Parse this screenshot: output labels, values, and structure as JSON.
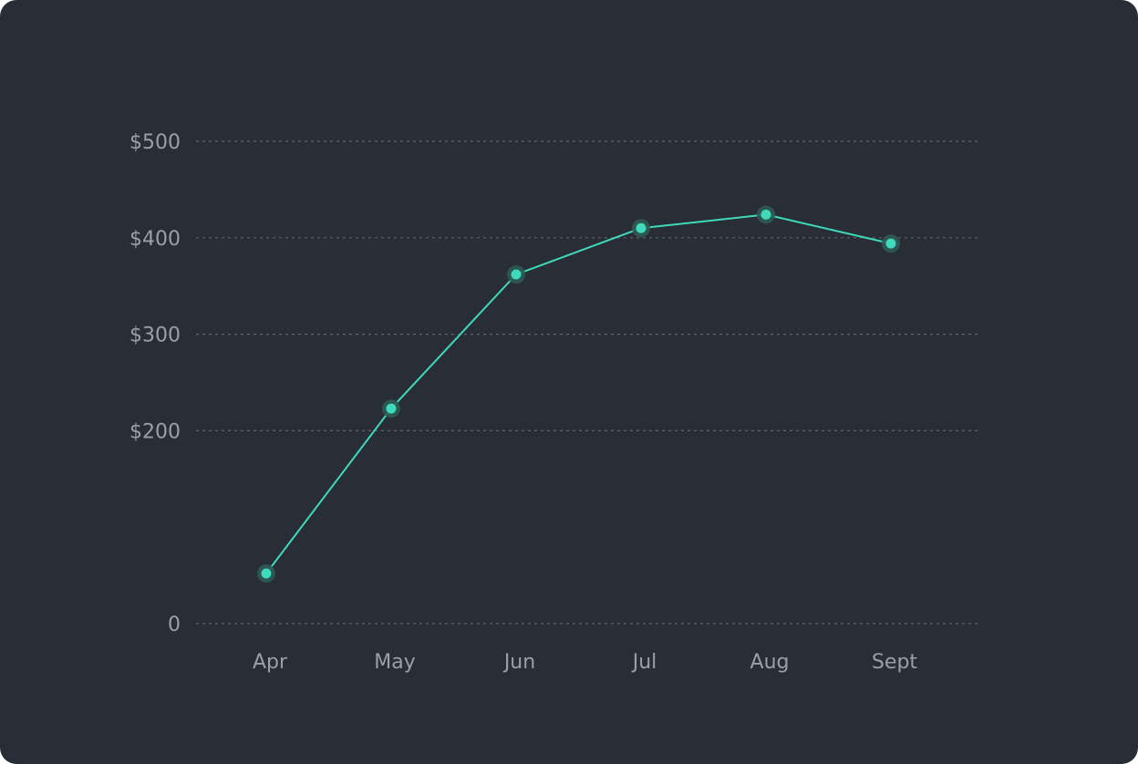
{
  "chart_data": {
    "type": "line",
    "title": "",
    "xlabel": "",
    "ylabel": "",
    "categories": [
      "Apr",
      "May",
      "Jun",
      "Jul",
      "Aug",
      "Sept"
    ],
    "values": [
      52,
      223,
      362,
      410,
      424,
      394
    ],
    "yticks": [
      {
        "value": 0,
        "label": "0"
      },
      {
        "value": 200,
        "label": "$200"
      },
      {
        "value": 300,
        "label": "$300"
      },
      {
        "value": 400,
        "label": "$400"
      },
      {
        "value": 500,
        "label": "$500"
      }
    ],
    "ylim": [
      0,
      500
    ],
    "grid": true,
    "legend": "none"
  },
  "colors": {
    "background": "#292d35",
    "line": "#3fd9bc",
    "point": "#3fd9bc",
    "point_halo": "#2e5a55",
    "grid": "#5f646d",
    "text": "#9b9fa7"
  }
}
